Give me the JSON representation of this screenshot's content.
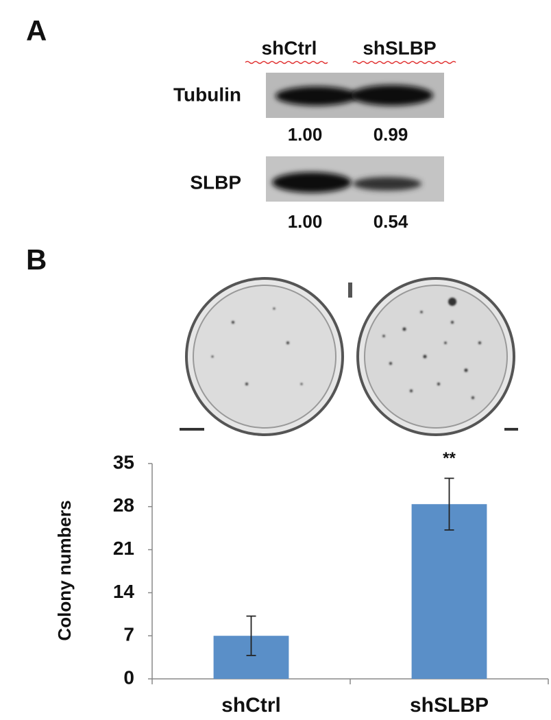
{
  "panel_a": {
    "label": "A",
    "columns": [
      "shCtrl",
      "shSLBP"
    ],
    "rows": [
      {
        "name": "Tubulin",
        "quant": [
          "1.00",
          "0.99"
        ]
      },
      {
        "name": "SLBP",
        "quant": [
          "1.00",
          "0.54"
        ]
      }
    ]
  },
  "panel_b": {
    "label": "B"
  },
  "chart_data": {
    "type": "bar",
    "y_label": "Colony numbers",
    "categories": [
      "shCtrl",
      "shSLBP"
    ],
    "values": [
      7,
      28.4
    ],
    "errors": [
      3.2,
      4.2
    ],
    "annotations": [
      null,
      "**"
    ],
    "color": "#5a8fc8",
    "ylim": [
      0,
      35
    ],
    "yticks": [
      0,
      7,
      14,
      21,
      28,
      35
    ],
    "grid": false
  }
}
